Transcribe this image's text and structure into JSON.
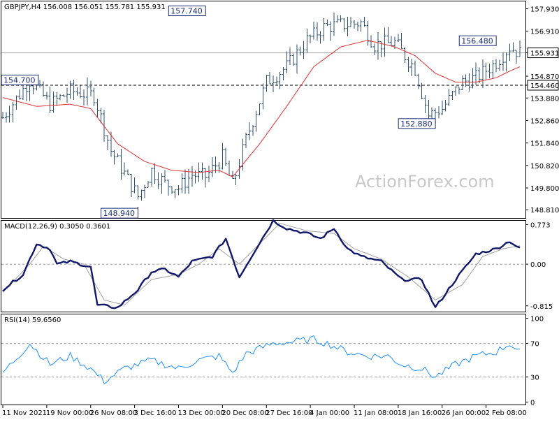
{
  "chart_data": [
    {
      "type": "bar",
      "name": "price",
      "header": "GBPJPY,H4  156.008 156.051 155.781 155.931",
      "watermark": "ActionForex.com",
      "ylim": [
        148.5,
        158.2
      ],
      "y_ticks": [
        "157.930",
        "156.910",
        "155.931",
        "154.870",
        "154.460",
        "153.880",
        "152.860",
        "151.840",
        "150.820",
        "149.800",
        "148.810"
      ],
      "y_tick_values": [
        157.93,
        156.91,
        155.931,
        154.87,
        154.46,
        153.88,
        152.86,
        151.84,
        150.82,
        149.8,
        148.81
      ],
      "current_price": {
        "value": 155.931,
        "label": "155.931"
      },
      "support_level": {
        "value": 154.46,
        "label": "154.460"
      },
      "resistance_gray_level": 155.931,
      "annotations": [
        {
          "text": "157.740",
          "value": 157.74,
          "index": 60
        },
        {
          "text": "156.480",
          "value": 156.48,
          "index": 146
        },
        {
          "text": "154.700",
          "value": 154.7,
          "index": 8
        },
        {
          "text": "152.880",
          "value": 152.88,
          "index": 128
        },
        {
          "text": "148.940",
          "value": 148.94,
          "index": 40
        }
      ],
      "key_points": [
        [
          0,
          153.0
        ],
        [
          8,
          154.7
        ],
        [
          14,
          153.6
        ],
        [
          20,
          154.2
        ],
        [
          27,
          154.0
        ],
        [
          32,
          151.5
        ],
        [
          40,
          149.4
        ],
        [
          44,
          150.6
        ],
        [
          48,
          150.0
        ],
        [
          52,
          149.8
        ],
        [
          56,
          150.4
        ],
        [
          60,
          150.3
        ],
        [
          65,
          151.2
        ],
        [
          68,
          149.9
        ],
        [
          72,
          152.0
        ],
        [
          78,
          154.6
        ],
        [
          84,
          155.3
        ],
        [
          90,
          156.5
        ],
        [
          95,
          157.1
        ],
        [
          100,
          157.2
        ],
        [
          106,
          157.3
        ],
        [
          110,
          156.3
        ],
        [
          116,
          156.4
        ],
        [
          122,
          155.2
        ],
        [
          126,
          153.1
        ],
        [
          130,
          153.4
        ],
        [
          136,
          154.6
        ],
        [
          140,
          154.8
        ],
        [
          146,
          155.5
        ],
        [
          150,
          156.2
        ],
        [
          153,
          155.931
        ]
      ],
      "ma_points": [
        [
          0,
          153.9
        ],
        [
          10,
          153.5
        ],
        [
          20,
          153.6
        ],
        [
          26,
          153.4
        ],
        [
          34,
          151.8
        ],
        [
          42,
          151.0
        ],
        [
          50,
          150.6
        ],
        [
          58,
          150.5
        ],
        [
          64,
          150.6
        ],
        [
          68,
          150.3
        ],
        [
          76,
          151.8
        ],
        [
          84,
          153.5
        ],
        [
          92,
          155.3
        ],
        [
          100,
          156.2
        ],
        [
          108,
          156.5
        ],
        [
          116,
          156.2
        ],
        [
          122,
          155.8
        ],
        [
          128,
          155.0
        ],
        [
          134,
          154.6
        ],
        [
          140,
          154.6
        ],
        [
          146,
          154.8
        ],
        [
          150,
          155.1
        ],
        [
          153,
          155.3
        ]
      ],
      "x_ticks": [
        {
          "label": "11 Nov 2021",
          "index": 0
        },
        {
          "label": "19 Nov 00:00",
          "index": 13
        },
        {
          "label": "26 Nov 08:00",
          "index": 26
        },
        {
          "label": "3 Dec 16:00",
          "index": 39
        },
        {
          "label": "13 Dec 00:00",
          "index": 52
        },
        {
          "label": "20 Dec 08:00",
          "index": 65
        },
        {
          "label": "27 Dec 16:00",
          "index": 78
        },
        {
          "label": "4 Jan 00:00",
          "index": 91
        },
        {
          "label": "11 Jan 08:00",
          "index": 104
        },
        {
          "label": "18 Jan 16:00",
          "index": 117
        },
        {
          "label": "26 Jan 00:00",
          "index": 130
        },
        {
          "label": "2 Feb 08:00",
          "index": 143
        }
      ],
      "bar_count": 154
    },
    {
      "type": "line",
      "name": "macd",
      "header": "MACD(12,26,9) 0.3050 0.3601",
      "ylim": [
        -0.9,
        0.82
      ],
      "y_ticks": [
        "0.773",
        "0.00",
        "-0.815"
      ],
      "y_tick_values": [
        0.773,
        0.0,
        -0.815
      ],
      "zero_level": 0.0,
      "macd_points": [
        [
          0,
          -0.5
        ],
        [
          6,
          -0.2
        ],
        [
          10,
          0.4
        ],
        [
          14,
          0.3
        ],
        [
          16,
          0.0
        ],
        [
          20,
          0.05
        ],
        [
          26,
          -0.05
        ],
        [
          28,
          -0.8
        ],
        [
          34,
          -0.85
        ],
        [
          40,
          -0.5
        ],
        [
          44,
          -0.15
        ],
        [
          48,
          -0.1
        ],
        [
          52,
          -0.25
        ],
        [
          56,
          0.05
        ],
        [
          62,
          0.15
        ],
        [
          66,
          0.5
        ],
        [
          70,
          -0.25
        ],
        [
          74,
          0.2
        ],
        [
          80,
          0.85
        ],
        [
          84,
          0.7
        ],
        [
          90,
          0.6
        ],
        [
          94,
          0.5
        ],
        [
          98,
          0.7
        ],
        [
          102,
          0.3
        ],
        [
          106,
          0.15
        ],
        [
          112,
          0.05
        ],
        [
          118,
          -0.3
        ],
        [
          124,
          -0.3
        ],
        [
          128,
          -0.85
        ],
        [
          134,
          -0.3
        ],
        [
          140,
          0.2
        ],
        [
          146,
          0.3
        ],
        [
          150,
          0.45
        ],
        [
          153,
          0.3
        ]
      ],
      "signal_points": [
        [
          0,
          -0.55
        ],
        [
          8,
          0.0
        ],
        [
          12,
          0.35
        ],
        [
          18,
          0.1
        ],
        [
          24,
          0.0
        ],
        [
          30,
          -0.7
        ],
        [
          36,
          -0.8
        ],
        [
          44,
          -0.3
        ],
        [
          52,
          -0.2
        ],
        [
          58,
          0.0
        ],
        [
          64,
          0.3
        ],
        [
          70,
          0.0
        ],
        [
          76,
          0.4
        ],
        [
          82,
          0.8
        ],
        [
          90,
          0.65
        ],
        [
          98,
          0.6
        ],
        [
          104,
          0.3
        ],
        [
          112,
          0.1
        ],
        [
          120,
          -0.25
        ],
        [
          128,
          -0.7
        ],
        [
          136,
          -0.4
        ],
        [
          142,
          0.15
        ],
        [
          148,
          0.3
        ],
        [
          153,
          0.36
        ]
      ]
    },
    {
      "type": "line",
      "name": "rsi",
      "header": "RSI(14) 59.6560",
      "ylim": [
        -2,
        103
      ],
      "y_ticks": [
        "100",
        "70",
        "30",
        "0"
      ],
      "y_tick_values": [
        100,
        70,
        30,
        0
      ],
      "levels": [
        70,
        30
      ],
      "rsi_points": [
        [
          0,
          35
        ],
        [
          8,
          70
        ],
        [
          14,
          45
        ],
        [
          20,
          55
        ],
        [
          26,
          40
        ],
        [
          30,
          25
        ],
        [
          36,
          40
        ],
        [
          44,
          50
        ],
        [
          52,
          40
        ],
        [
          58,
          50
        ],
        [
          64,
          55
        ],
        [
          68,
          35
        ],
        [
          72,
          58
        ],
        [
          80,
          70
        ],
        [
          86,
          72
        ],
        [
          92,
          75
        ],
        [
          96,
          70
        ],
        [
          102,
          60
        ],
        [
          108,
          55
        ],
        [
          114,
          55
        ],
        [
          118,
          45
        ],
        [
          124,
          40
        ],
        [
          128,
          30
        ],
        [
          134,
          45
        ],
        [
          140,
          55
        ],
        [
          146,
          60
        ],
        [
          150,
          70
        ],
        [
          153,
          59.656
        ]
      ]
    }
  ]
}
